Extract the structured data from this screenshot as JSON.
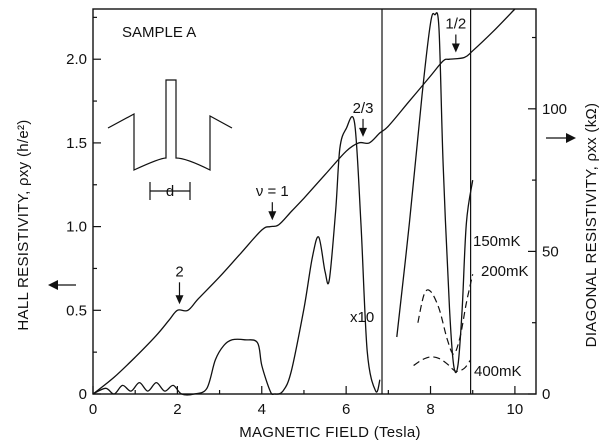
{
  "chart_data": {
    "type": "line",
    "title": "",
    "panel_label": "SAMPLE A",
    "xlabel": "MAGNETIC FIELD (Tesla)",
    "ylabel_left": "HALL RESISTIVITY, ρxy (h/e²)",
    "ylabel_right": "DIAGONAL RESISTIVITY, ρxx (kΩ)",
    "xlim": [
      0,
      10.5
    ],
    "ylim_left": [
      0,
      2.3
    ],
    "ylim_right": [
      0,
      135
    ],
    "x_ticks": [
      {
        "v": 0,
        "label": "0"
      },
      {
        "v": 2,
        "label": "2"
      },
      {
        "v": 4,
        "label": "4"
      },
      {
        "v": 6,
        "label": "6"
      },
      {
        "v": 8,
        "label": "8"
      },
      {
        "v": 10,
        "label": "10"
      }
    ],
    "y_left_ticks": [
      {
        "v": 0,
        "label": "0"
      },
      {
        "v": 0.5,
        "label": "0.5"
      },
      {
        "v": 1.0,
        "label": "1.0"
      },
      {
        "v": 1.5,
        "label": "1.5"
      },
      {
        "v": 2.0,
        "label": "2.0"
      }
    ],
    "y_right_ticks": [
      {
        "v": 0,
        "label": "0"
      },
      {
        "v": 50,
        "label": "50"
      },
      {
        "v": 100,
        "label": "100"
      }
    ],
    "series": [
      {
        "axis": "left",
        "style": "solid",
        "x": [
          0,
          0.5,
          1.0,
          1.5,
          1.8,
          2.0,
          2.25,
          2.5,
          3.0,
          3.5,
          4.0,
          4.2,
          4.4,
          4.7,
          5.0,
          5.5,
          6.0,
          6.3,
          6.55,
          6.8,
          7.0,
          7.5,
          8.0,
          8.3,
          8.45,
          8.8,
          9.0,
          9.5,
          10.0
        ],
        "y": [
          0,
          0.1,
          0.22,
          0.35,
          0.44,
          0.5,
          0.5,
          0.57,
          0.7,
          0.84,
          0.98,
          1.0,
          1.01,
          1.09,
          1.17,
          1.31,
          1.45,
          1.5,
          1.5,
          1.56,
          1.6,
          1.75,
          1.9,
          1.99,
          2.0,
          2.01,
          2.05,
          2.17,
          2.3
        ]
      },
      {
        "axis": "right",
        "style": "solid",
        "scale_label": "x10",
        "x": [
          0,
          0.3,
          0.5,
          0.7,
          0.9,
          1.1,
          1.3,
          1.5,
          1.7,
          1.9,
          2.1,
          2.4,
          2.7,
          2.9,
          3.1,
          3.3,
          3.6,
          3.9,
          4.0,
          4.2,
          4.3,
          4.5,
          4.7,
          5.0,
          5.2,
          5.35,
          5.5,
          5.6,
          5.75,
          5.85,
          6.0,
          6.2,
          6.35,
          6.5,
          6.7,
          6.8
        ],
        "y": [
          0,
          2,
          0,
          3,
          1,
          4,
          1,
          4,
          1,
          3,
          0,
          0,
          2,
          12,
          17,
          19,
          19,
          18,
          10,
          1,
          0,
          1,
          8,
          30,
          48,
          55,
          43,
          40,
          64,
          86,
          93,
          95,
          60,
          15,
          1,
          5
        ]
      },
      {
        "axis": "right",
        "style": "solid",
        "temperature": "150mK",
        "x": [
          7.2,
          7.5,
          7.8,
          8.0,
          8.1,
          8.2,
          8.3,
          8.45,
          8.55,
          8.65,
          8.75,
          8.85,
          9.0
        ],
        "y": [
          20,
          60,
          105,
          130,
          133,
          128,
          80,
          30,
          10,
          10,
          30,
          60,
          75
        ]
      },
      {
        "axis": "right",
        "style": "dashed",
        "temperature": "200mK",
        "x": [
          7.7,
          7.85,
          8.0,
          8.2,
          8.4,
          8.55,
          8.7,
          8.85,
          9.0
        ],
        "y": [
          25,
          35,
          36,
          30,
          19,
          14,
          20,
          32,
          42
        ]
      },
      {
        "axis": "right",
        "style": "dashed",
        "temperature": "400mK",
        "x": [
          7.6,
          7.8,
          8.0,
          8.2,
          8.4,
          8.6,
          8.8,
          8.95
        ],
        "y": [
          10,
          12,
          13,
          12.5,
          10.5,
          8,
          9,
          12
        ]
      }
    ],
    "annotations": [
      {
        "text": "2",
        "x": 2.05
      },
      {
        "text": "ν = 1",
        "x": 4.25
      },
      {
        "text": "2/3",
        "x": 6.4
      },
      {
        "text": "1/2",
        "x": 8.6
      },
      {
        "text": "x10"
      },
      {
        "text": "150mK"
      },
      {
        "text": "200mK"
      },
      {
        "text": "400mK"
      }
    ],
    "vertical_lines_x": [
      6.85,
      8.95
    ],
    "inset_label": "d"
  }
}
